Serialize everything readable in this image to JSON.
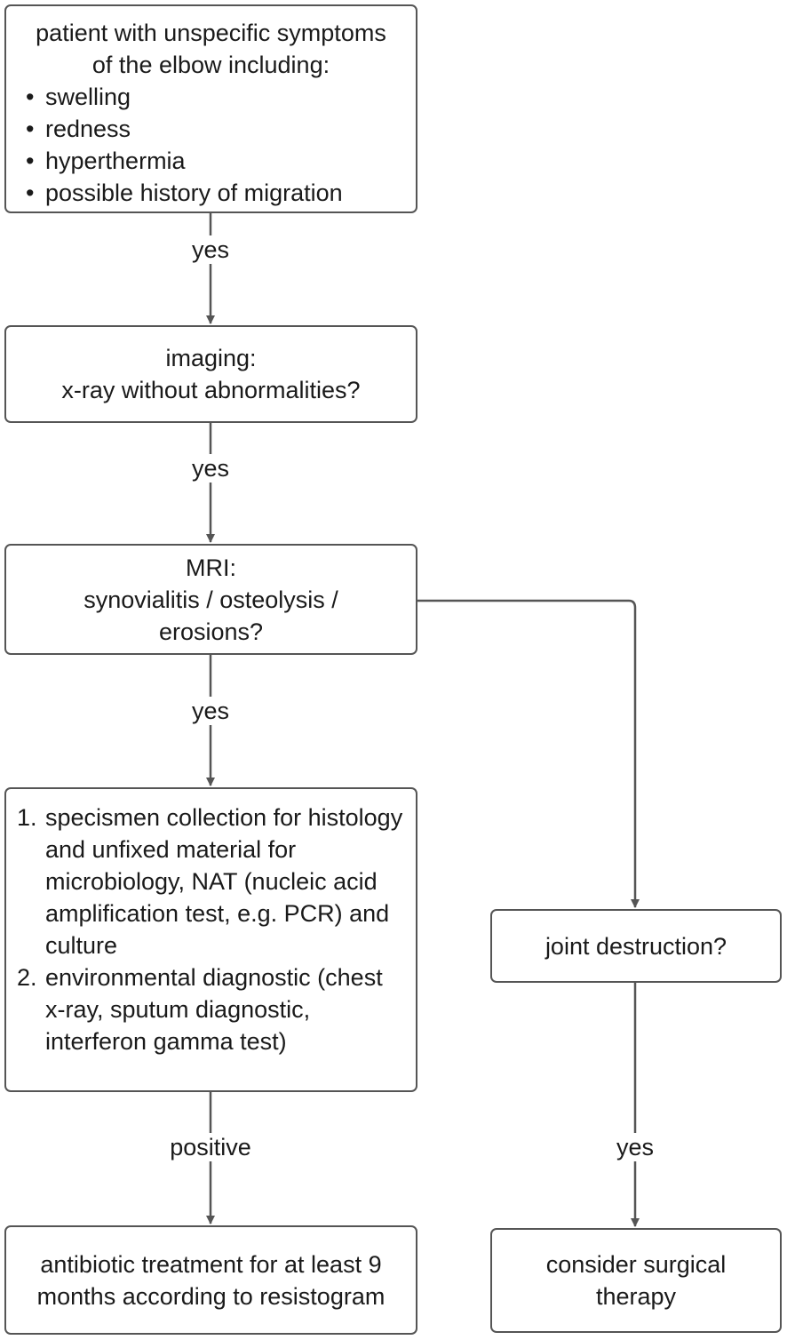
{
  "nodes": {
    "symptoms": {
      "title_line1": "patient with unspecific symptoms",
      "title_line2": "of the elbow including:",
      "items": [
        "swelling",
        "redness",
        "hyperthermia",
        "possible history of migration"
      ]
    },
    "imaging": {
      "line1": "imaging:",
      "line2": "x-ray without abnormalities?"
    },
    "mri": {
      "line1": "MRI:",
      "line2": "synovialitis / osteolysis /",
      "line3": "erosions?"
    },
    "diagnostics": {
      "step1_num": "1.",
      "step1_text": "specismen collection for histology and unfixed material for microbiology, NAT (nucleic acid amplification test, e.g. PCR) and culture",
      "step2_num": "2.",
      "step2_text": "environmental diagnostic (chest x-ray, sputum diagnostic, interferon gamma test)"
    },
    "joint_destruction": {
      "text": "joint destruction?"
    },
    "antibiotic": {
      "line1": "antibiotic treatment for at least 9",
      "line2": "months according to resistogram"
    },
    "surgery": {
      "line1": "consider surgical",
      "line2": "therapy"
    }
  },
  "edge_labels": {
    "symptoms_to_imaging": "yes",
    "imaging_to_mri": "yes",
    "mri_to_diagnostics": "yes",
    "diagnostics_to_antibiotic": "positive",
    "joint_to_surgery": "yes"
  },
  "colors": {
    "stroke": "#555555",
    "text": "#1a1a1a",
    "background": "#ffffff"
  }
}
